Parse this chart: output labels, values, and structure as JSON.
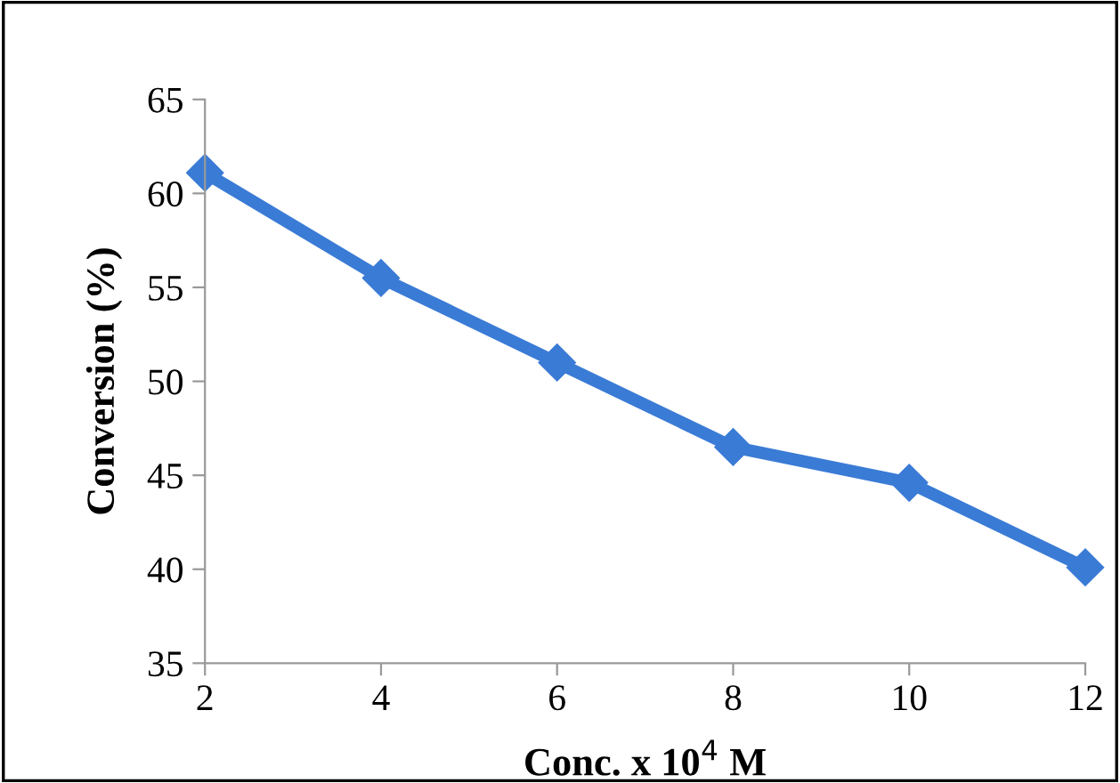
{
  "chart_data": {
    "type": "line",
    "xlabel": "Conc. x 10$^{4}$ M",
    "ylabel": "Conversion (%)",
    "x": [
      2,
      4,
      6,
      8,
      10,
      12
    ],
    "series": [
      {
        "color": "#3a7bd5",
        "values": [
          61.1,
          55.5,
          51.0,
          46.5,
          44.6,
          40.1
        ]
      }
    ],
    "xlim": [
      2,
      12
    ],
    "xticks": [
      2,
      4,
      6,
      8,
      10,
      12
    ],
    "ylim": [
      35,
      65
    ],
    "yticks": [
      35,
      40,
      45,
      50,
      55,
      60,
      65
    ],
    "grid": false,
    "legend": false,
    "marker": "diamond",
    "line_style": "solid"
  }
}
